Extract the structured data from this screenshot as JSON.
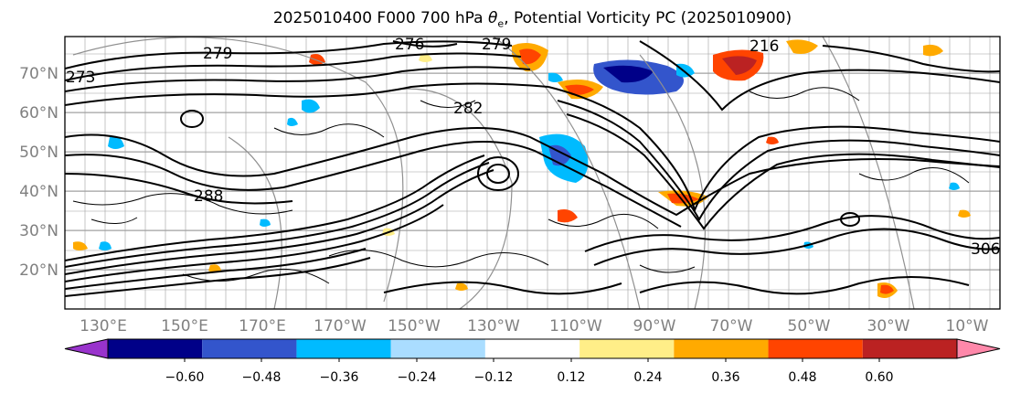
{
  "title_prefix": "2025010400 F000 700 hPa ",
  "title_var": "θ",
  "title_sub": "e",
  "title_suffix": ", Potential Vorticity PC (2025010900)",
  "lat_labels": [
    "70°N",
    "60°N",
    "50°N",
    "40°N",
    "30°N",
    "20°N"
  ],
  "lon_labels": [
    "130°E",
    "150°E",
    "170°E",
    "170°W",
    "150°W",
    "130°W",
    "110°W",
    "90°W",
    "70°W",
    "50°W",
    "30°W",
    "10°W"
  ],
  "contour_labels": [
    "279",
    "276",
    "279",
    "273",
    "282",
    "288",
    "216",
    "306"
  ],
  "colorbar": {
    "colors": [
      "#9933cc",
      "#000088",
      "#3355cc",
      "#00bbff",
      "#aaddff",
      "#ffffff",
      "#ffee88",
      "#ffaa00",
      "#ff4400",
      "#bb2222",
      "#ff88aa"
    ],
    "ticks": [
      "−0.60",
      "−0.48",
      "−0.36",
      "−0.24",
      "−0.12",
      "0.12",
      "0.24",
      "0.36",
      "0.48",
      "0.60"
    ]
  }
}
